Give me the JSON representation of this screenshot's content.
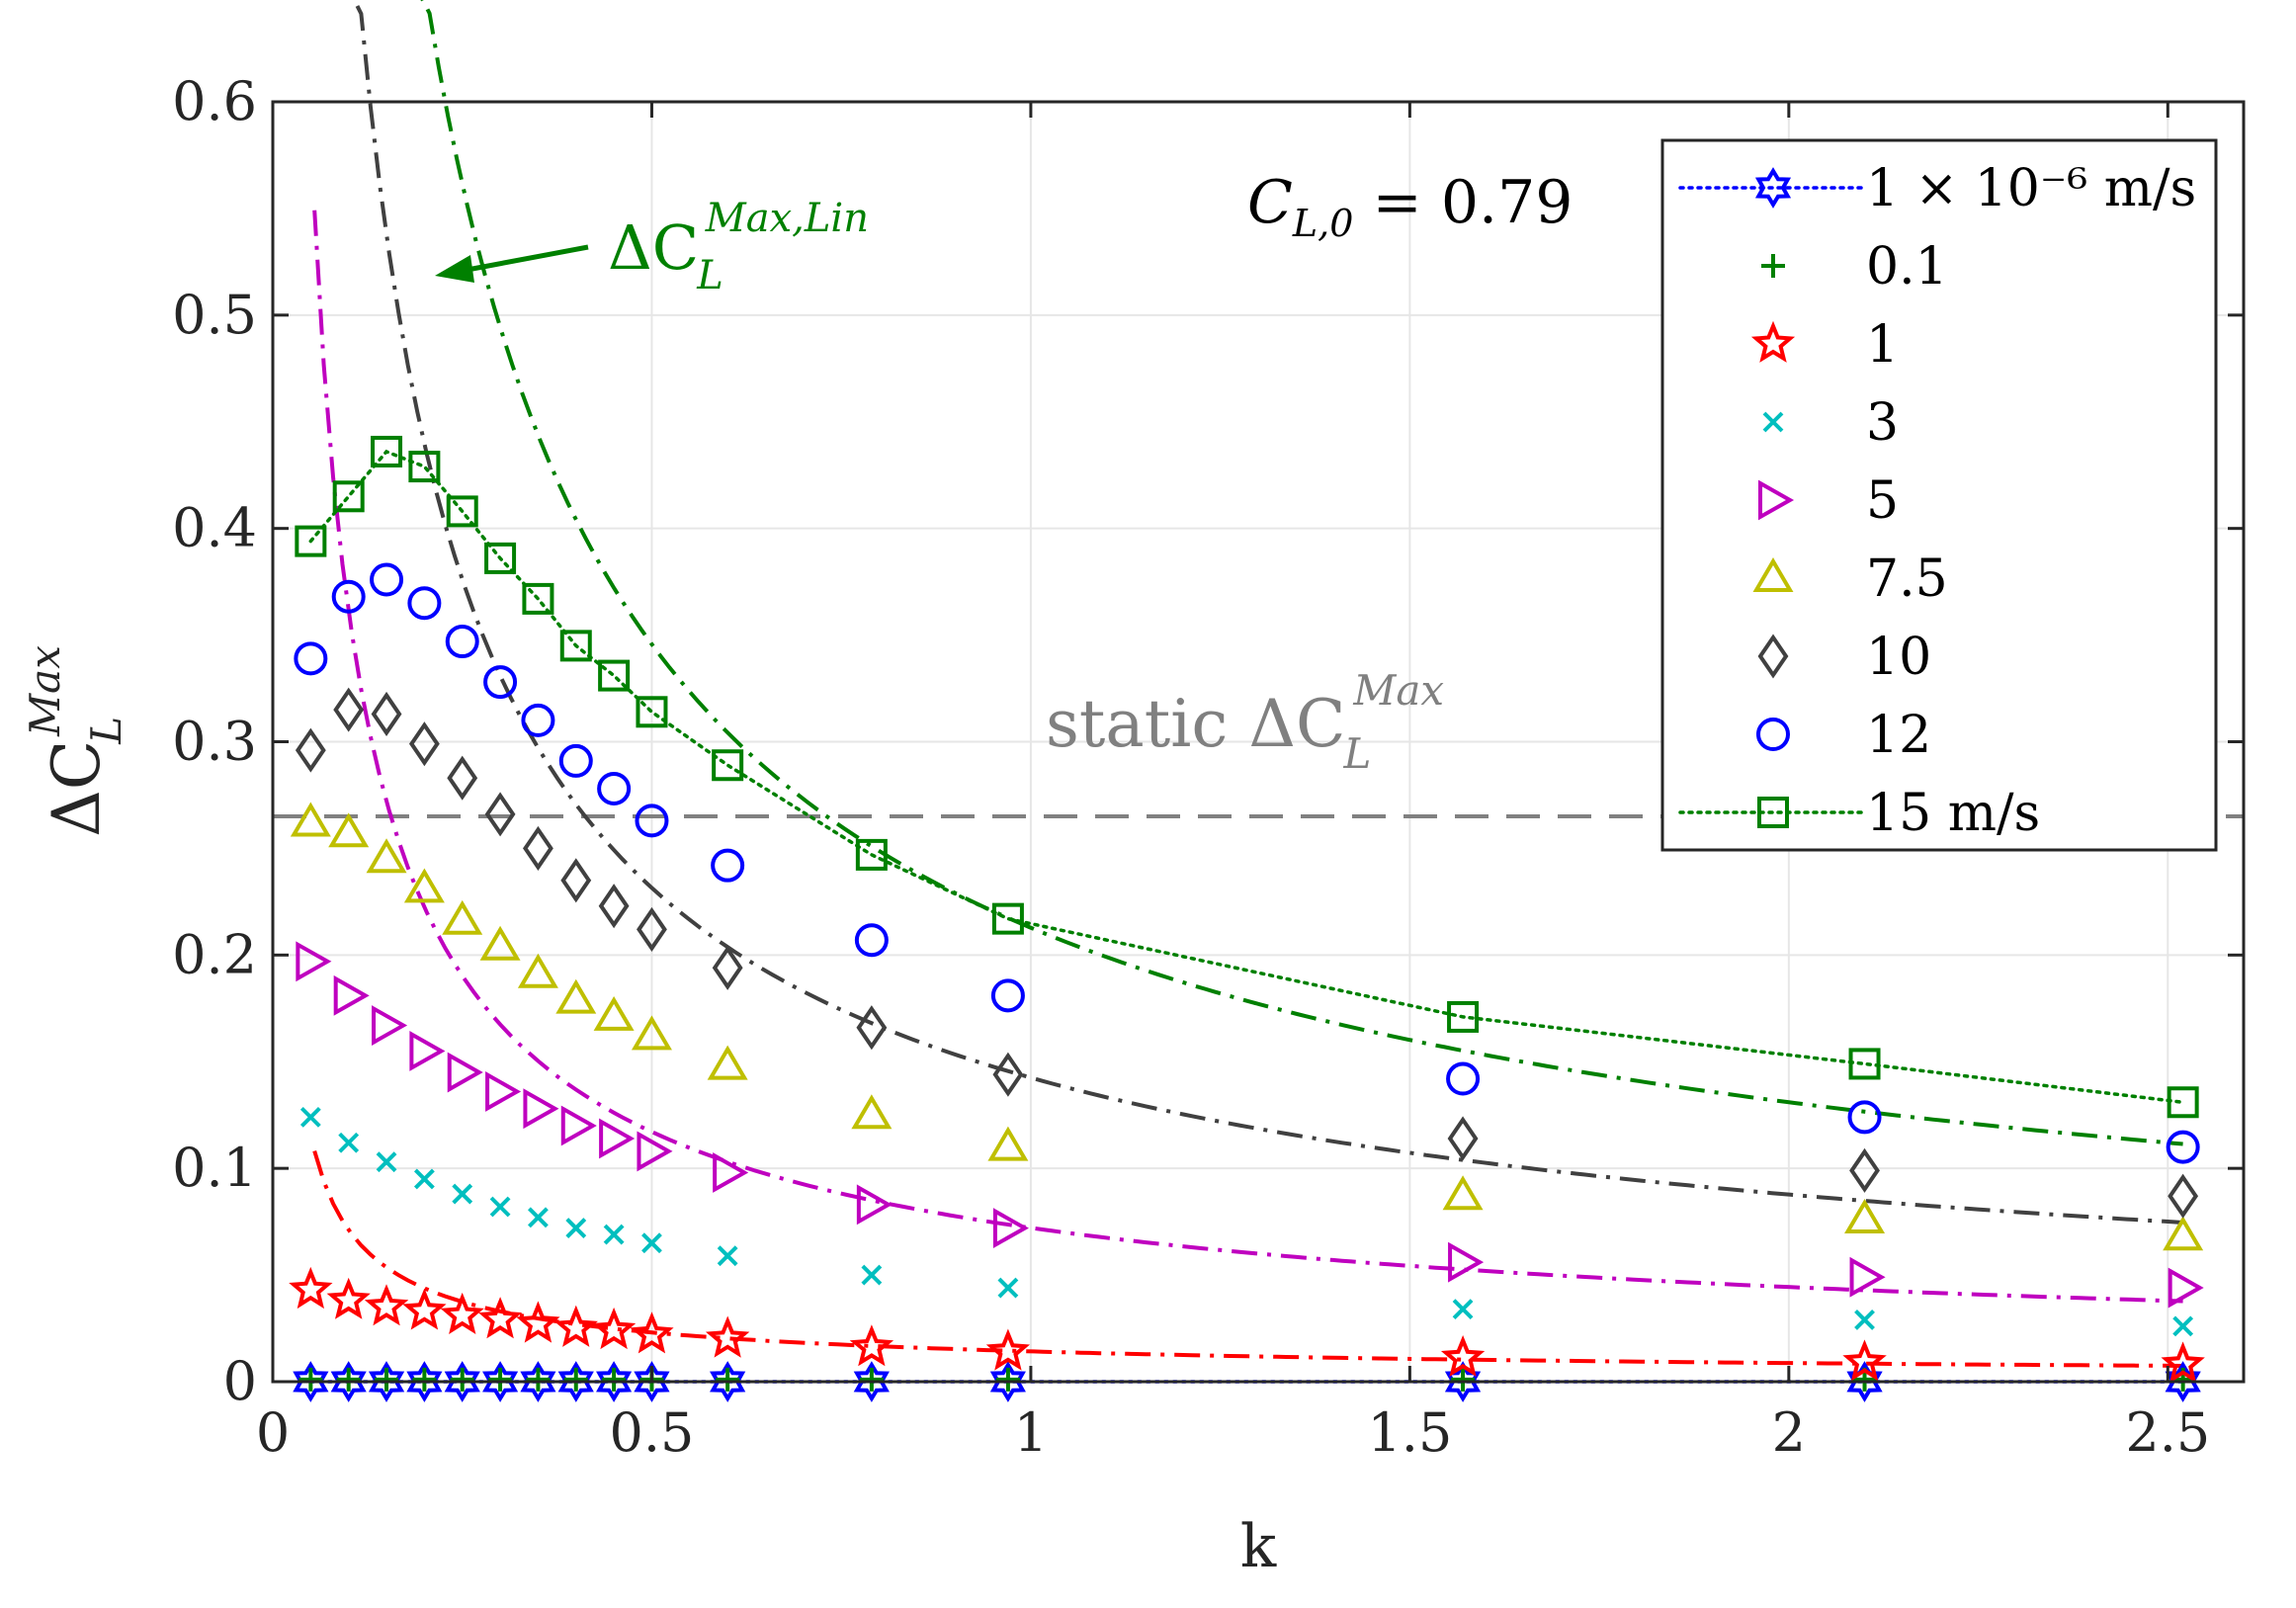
{
  "chart_data": {
    "type": "scatter",
    "xlabel": "k",
    "ylabel": "ΔC_L^Max",
    "xlim": [
      0,
      2.6
    ],
    "ylim": [
      0,
      0.6
    ],
    "xticks": [
      0,
      0.5,
      1,
      1.5,
      2,
      2.5
    ],
    "xtick_labels": [
      "0",
      "0.5",
      "1",
      "1.5",
      "2",
      "2.5"
    ],
    "yticks": [
      0,
      0.1,
      0.2,
      0.3,
      0.4,
      0.5,
      0.6
    ],
    "ytick_labels": [
      "0",
      "0.1",
      "0.2",
      "0.3",
      "0.4",
      "0.5",
      "0.6"
    ],
    "grid": true,
    "legend_position": "top-right",
    "x": [
      0.05,
      0.1,
      0.15,
      0.2,
      0.25,
      0.3,
      0.35,
      0.4,
      0.45,
      0.5,
      0.6,
      0.79,
      0.97,
      1.57,
      2.1,
      2.52
    ],
    "series": [
      {
        "name": "1 × 10⁻⁶ m/s",
        "marker": "hexagram",
        "color": "#0000ff",
        "line": "dotted",
        "values": [
          0,
          0,
          0,
          0,
          0,
          0,
          0,
          0,
          0,
          0,
          0,
          0,
          0,
          0,
          0,
          0
        ]
      },
      {
        "name": "0.1",
        "marker": "plus",
        "color": "#008000",
        "values": [
          0.001,
          0.001,
          0.001,
          0.001,
          0.001,
          0.001,
          0.001,
          0.001,
          0.001,
          0.001,
          0.001,
          0.001,
          0.001,
          0.001,
          0.001,
          0.001
        ]
      },
      {
        "name": "1",
        "marker": "pentagram",
        "color": "#ff0000",
        "values": [
          0.043,
          0.038,
          0.035,
          0.033,
          0.031,
          0.029,
          0.027,
          0.025,
          0.024,
          0.022,
          0.02,
          0.016,
          0.014,
          0.011,
          0.009,
          0.008
        ]
      },
      {
        "name": "3",
        "marker": "x",
        "color": "#00bfbf",
        "values": [
          0.124,
          0.112,
          0.103,
          0.095,
          0.088,
          0.082,
          0.077,
          0.072,
          0.069,
          0.065,
          0.059,
          0.05,
          0.044,
          0.034,
          0.029,
          0.026
        ]
      },
      {
        "name": "5",
        "marker": "triangle-right",
        "color": "#bf00bf",
        "values": [
          0.197,
          0.181,
          0.167,
          0.155,
          0.145,
          0.136,
          0.128,
          0.12,
          0.114,
          0.108,
          0.098,
          0.083,
          0.072,
          0.056,
          0.049,
          0.044
        ]
      },
      {
        "name": "7.5",
        "marker": "triangle-up",
        "color": "#bfbf00",
        "values": [
          0.262,
          0.257,
          0.245,
          0.231,
          0.216,
          0.204,
          0.191,
          0.179,
          0.171,
          0.162,
          0.148,
          0.125,
          0.11,
          0.087,
          0.076,
          0.068
        ]
      },
      {
        "name": "10",
        "marker": "diamond",
        "color": "#404040",
        "values": [
          0.296,
          0.315,
          0.313,
          0.299,
          0.283,
          0.266,
          0.25,
          0.235,
          0.223,
          0.212,
          0.194,
          0.166,
          0.144,
          0.114,
          0.099,
          0.087
        ]
      },
      {
        "name": "12",
        "marker": "circle",
        "color": "#0000ff",
        "values": [
          0.339,
          0.368,
          0.376,
          0.365,
          0.347,
          0.328,
          0.31,
          0.291,
          0.278,
          0.263,
          0.242,
          0.207,
          0.181,
          0.142,
          0.124,
          0.11
        ]
      },
      {
        "name": "15 m/s",
        "marker": "square",
        "color": "#008000",
        "line": "dotted",
        "values": [
          0.394,
          0.415,
          0.436,
          0.429,
          0.408,
          0.386,
          0.367,
          0.345,
          0.331,
          0.314,
          0.289,
          0.247,
          0.217,
          0.171,
          0.149,
          0.131
        ]
      }
    ],
    "fit_curves": [
      {
        "name": "10 fit",
        "color": "#404040",
        "x_start": 0.055,
        "x_end": 2.52,
        "coef": 0.1425,
        "exp": 0.7
      },
      {
        "name": "5 fit",
        "color": "#bf00bf",
        "x_start": 0.055,
        "x_end": 2.52,
        "coef": 0.0721,
        "exp": 0.7
      },
      {
        "name": "1 fit",
        "color": "#ff0000",
        "x_start": 0.055,
        "x_end": 2.52,
        "coef": 0.0142,
        "exp": 0.7
      },
      {
        "name": "ΔC_L^Max,Lin",
        "color": "#008000",
        "x_start": 0.085,
        "x_end": 2.52,
        "coef": 0.2128,
        "exp": 0.7
      }
    ],
    "static_line": {
      "value": 0.265,
      "color": "#808080"
    },
    "annotations": {
      "cl0_text": "C_L,0 = 0.79",
      "lin_text": "ΔC_L^Max,Lin",
      "static_text": "static ΔC_L^Max"
    },
    "colors": {
      "grid": "#e6e6e6",
      "axes": "#262626"
    }
  }
}
